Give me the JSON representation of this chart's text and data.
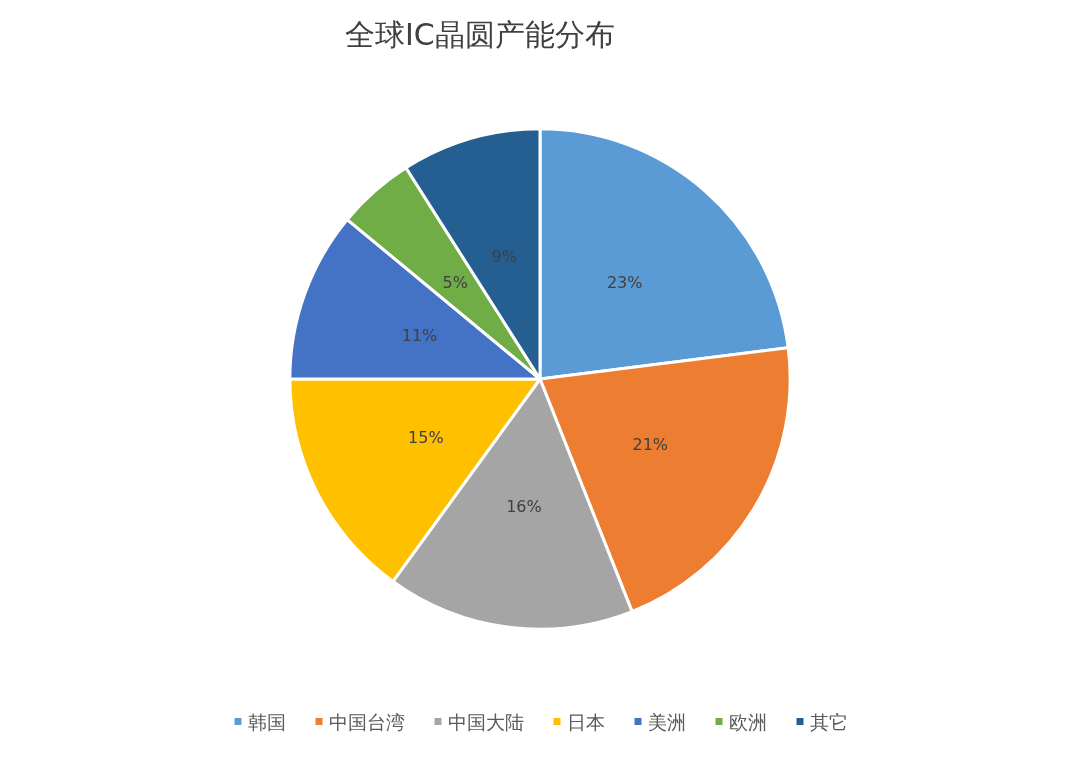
{
  "chart_data": {
    "type": "pie",
    "title": "全球IC晶圆产能分布",
    "categories": [
      "韩国",
      "中国台湾",
      "中国大陆",
      "日本",
      "美洲",
      "欧洲",
      "其它"
    ],
    "values": [
      23,
      21,
      16,
      15,
      11,
      5,
      9
    ],
    "colors": [
      "#5b9bd5",
      "#ed7d31",
      "#a5a5a5",
      "#ffc000",
      "#4472c4",
      "#70ad47",
      "#255e91"
    ],
    "value_labels": [
      "23%",
      "21%",
      "16%",
      "15%",
      "11%",
      "5%",
      "9%"
    ],
    "legend": "bottom"
  }
}
